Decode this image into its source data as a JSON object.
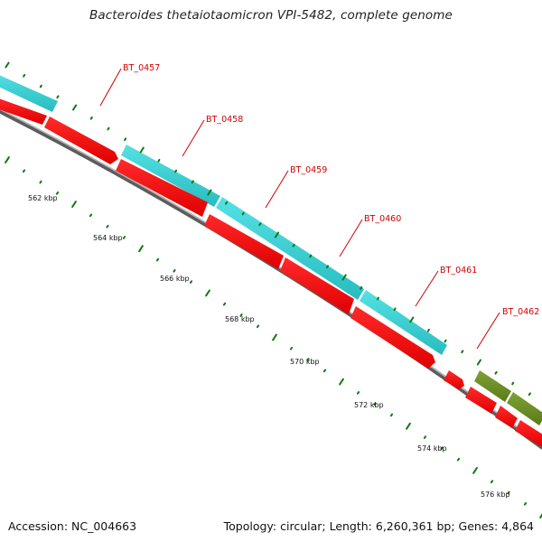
{
  "title": "Bacteroides thetaiotaomicron VPI-5482, complete genome",
  "accession": "Accession: NC_004663",
  "topology": "Topology: circular; Length: 6,260,361 bp; Genes: 4,864",
  "colors": {
    "cds_forward": "#ff0000",
    "cds_other": "#3ccfd2",
    "olive": "#6b8c22",
    "tick": "#0c7a0c",
    "label": "#d00000",
    "backbone": "#7a7a7a"
  },
  "kbp_labels": [
    "562 kbp",
    "564 kbp",
    "566 kbp",
    "568 kbp",
    "570 kbp",
    "572 kbp",
    "574 kbp",
    "576 kbp"
  ],
  "genes": [
    "BT_0457",
    "BT_0458",
    "BT_0459",
    "BT_0460",
    "BT_0461",
    "BT_0462"
  ]
}
